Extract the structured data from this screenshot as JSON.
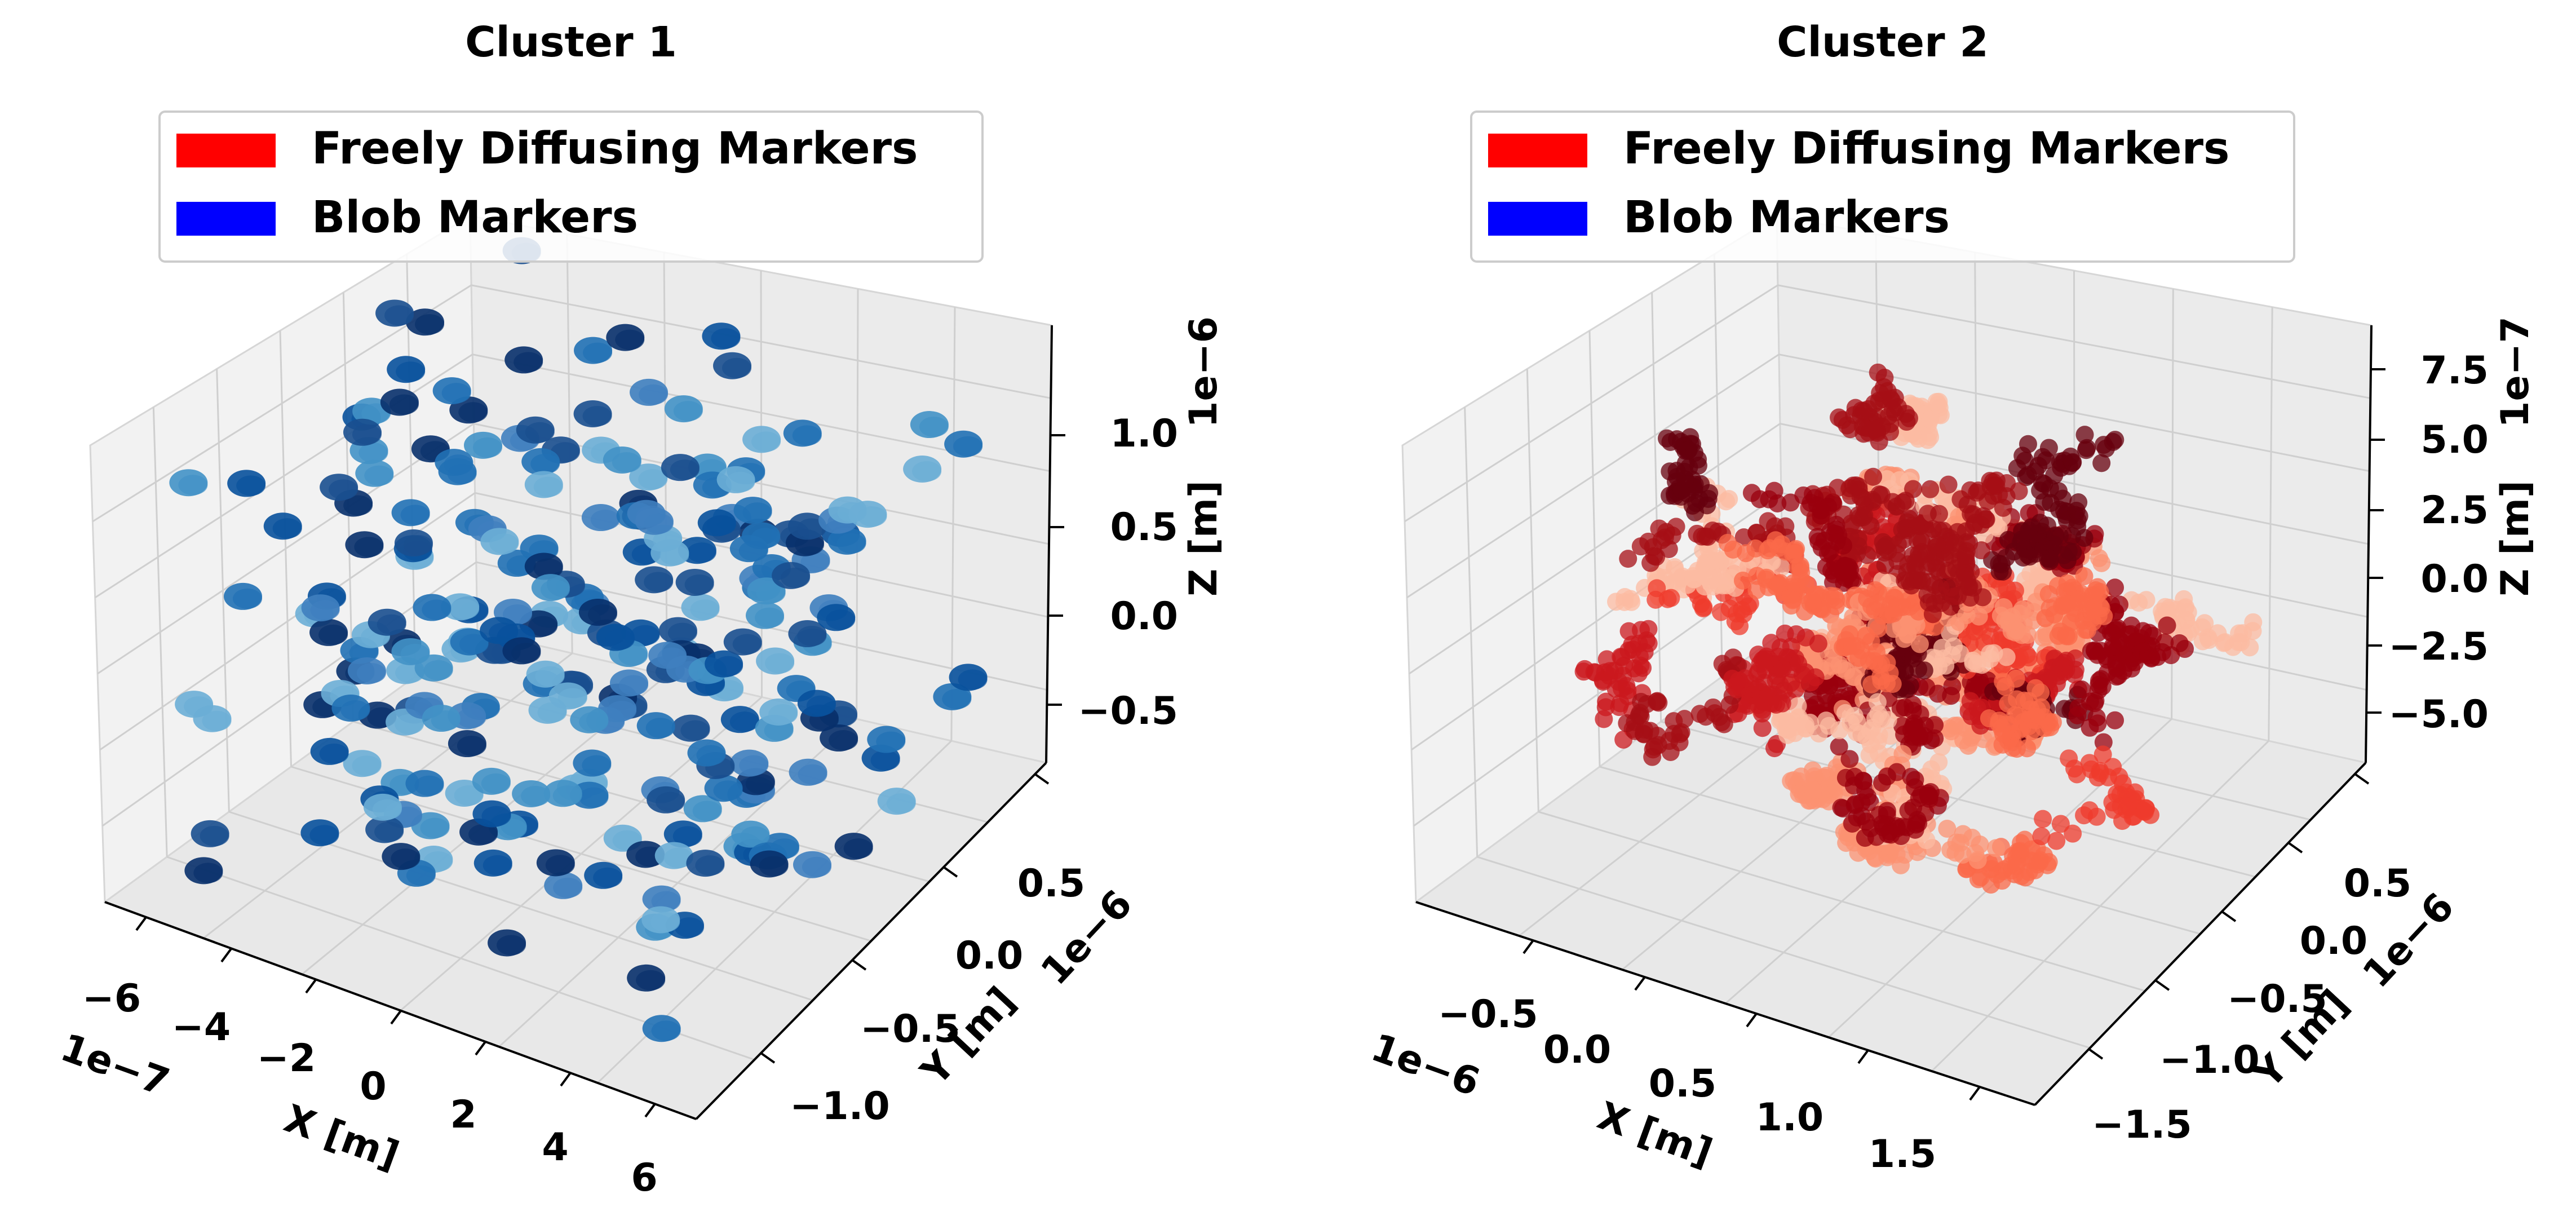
{
  "chart_data": [
    {
      "type": "scatter",
      "projection": "3d",
      "title": "Cluster 1",
      "xlabel": "X [m]",
      "ylabel": "Y [m]",
      "zlabel": "Z [m]",
      "x_offset_label": "1e−7",
      "y_offset_label": "1e−6",
      "z_offset_label": "1e−6",
      "x_ticks": [
        "−6",
        "−4",
        "−2",
        "0",
        "2",
        "4",
        "6"
      ],
      "y_ticks": [
        "−1.0",
        "−0.5",
        "0.0",
        "0.5"
      ],
      "z_ticks": [
        "−0.5",
        "0.0",
        "0.5",
        "1.0"
      ],
      "x_tick_values": [
        -6e-07,
        -4e-07,
        -2e-07,
        0,
        2e-07,
        4e-07,
        6e-07
      ],
      "y_tick_values": [
        -1e-06,
        -5e-07,
        0,
        5e-07
      ],
      "z_tick_values": [
        -5e-07,
        0,
        5e-07,
        1e-06
      ],
      "xlim": [
        -7e-07,
        7e-07
      ],
      "ylim": [
        -1.2e-06,
        7.5e-07
      ],
      "zlim": [
        -8.5e-07,
        1.45e-06
      ],
      "grid": true,
      "legend": {
        "placement": "top-center",
        "entries": [
          {
            "label": "Freely Diffusing Markers",
            "color": "#ff0000"
          },
          {
            "label": "Blob Markers",
            "color": "#0000ff"
          }
        ]
      },
      "series": [
        {
          "group": "Blob Markers",
          "colormap": "Blues",
          "count": 250,
          "distribution": "uniform",
          "seed": 11
        }
      ]
    },
    {
      "type": "scatter",
      "projection": "3d",
      "title": "Cluster 2",
      "xlabel": "X [m]",
      "ylabel": "Y [m]",
      "zlabel": "Z [m]",
      "x_offset_label": "1e−6",
      "y_offset_label": "1e−6",
      "z_offset_label": "1e−7",
      "x_ticks": [
        "−0.5",
        "0.0",
        "0.5",
        "1.0",
        "1.5"
      ],
      "y_ticks": [
        "−1.5",
        "−1.0",
        "−0.5",
        "0.0",
        "0.5"
      ],
      "z_ticks": [
        "−5.0",
        "−2.5",
        "0.0",
        "2.5",
        "5.0",
        "7.5"
      ],
      "x_tick_values": [
        -5e-07,
        0,
        5e-07,
        1e-06,
        1.5e-06
      ],
      "y_tick_values": [
        -1.5e-06,
        -1e-06,
        -5e-07,
        0,
        5e-07
      ],
      "z_tick_values": [
        -5e-07,
        -2.5e-07,
        0,
        2.5e-07,
        5e-07,
        7.5e-07
      ],
      "xlim": [
        -1e-06,
        1.8e-06
      ],
      "ylim": [
        -1.7e-06,
        7.5e-07
      ],
      "zlim": [
        -7e-07,
        8.6e-07
      ],
      "grid": true,
      "legend": {
        "placement": "top-center",
        "entries": [
          {
            "label": "Freely Diffusing Markers",
            "color": "#ff0000"
          },
          {
            "label": "Blob Markers",
            "color": "#0000ff"
          }
        ]
      },
      "series": [
        {
          "group": "Freely Diffusing Markers",
          "colormap": "Reds",
          "count": 60,
          "distribution": "random-walk",
          "seed": 29
        }
      ]
    }
  ]
}
